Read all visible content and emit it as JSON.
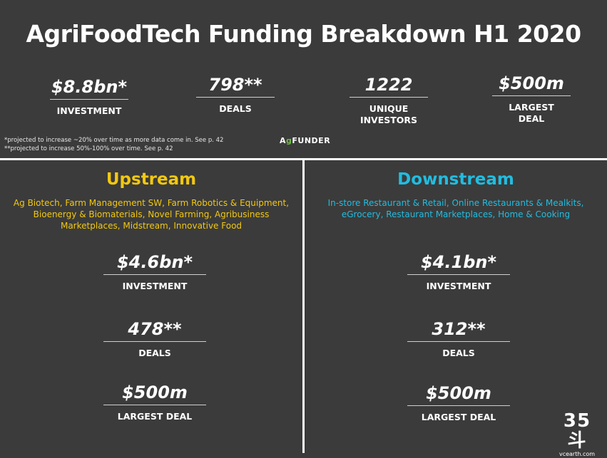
{
  "title": "AgriFoodTech Funding Breakdown H1 2020",
  "summary": [
    {
      "value": "$8.8bn*",
      "label": "INVESTMENT"
    },
    {
      "value": "798**",
      "label": "DEALS"
    },
    {
      "value": "1222",
      "label": "UNIQUE INVESTORS"
    },
    {
      "value": "$500m",
      "label": "LARGEST DEAL"
    }
  ],
  "footnotes": [
    "*projected to increase ~20% over time as more data come in. See p. 42",
    "**projected to increase 50%-100% over time. See p. 42"
  ],
  "logo": {
    "prefix": "A",
    "accent": "g",
    "rest": "FUNDER"
  },
  "upstream": {
    "title": "Upstream",
    "description": "Ag Biotech, Farm Management SW, Farm Robotics & Equipment, Bioenergy & Biomaterials, Novel Farming, Agribusiness Marketplaces, Midstream, Innovative Food",
    "stats": [
      {
        "value": "$4.6bn*",
        "label": "INVESTMENT"
      },
      {
        "value": "478**",
        "label": "DEALS"
      },
      {
        "value": "$500m",
        "label": "LARGEST DEAL"
      }
    ]
  },
  "downstream": {
    "title": "Downstream",
    "description": "In-store Restaurant & Retail, Online Restaurants & Mealkits, eGrocery, Restaurant Marketplaces, Home & Cooking",
    "stats": [
      {
        "value": "$4.1bn*",
        "label": "INVESTMENT"
      },
      {
        "value": "312**",
        "label": "DEALS"
      },
      {
        "value": "$500m",
        "label": "LARGEST DEAL"
      }
    ]
  },
  "watermark": {
    "big": "35斗",
    "small": "vcearth.com"
  },
  "colors": {
    "background": "#3b3b3b",
    "upstream": "#f2c811",
    "downstream": "#21bde0",
    "logo_accent": "#6fbf44"
  }
}
